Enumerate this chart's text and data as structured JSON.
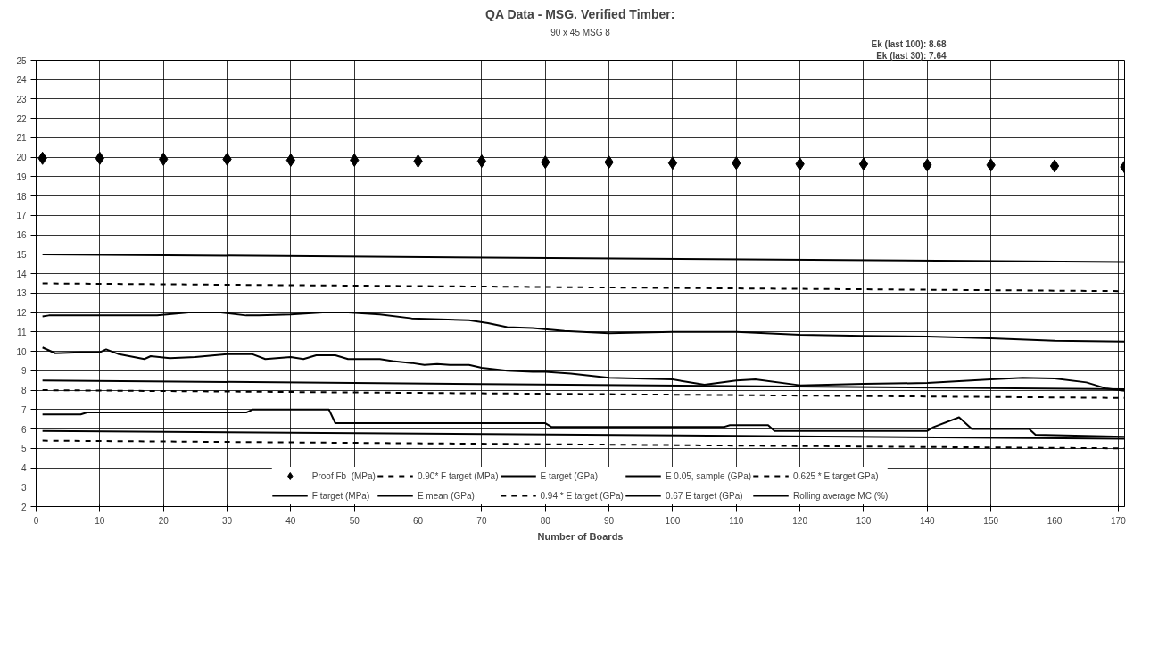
{
  "chart_data": {
    "type": "line",
    "title": "QA Data - MSG. Verified Timber:",
    "xlabel": "Number of Boards",
    "annotations": [
      "90 x 45 MSG 8",
      "Ek (last 100): 8.68",
      "Ek (last 30): 7.64"
    ],
    "xlim": [
      0,
      171
    ],
    "xticks": [
      0,
      10,
      20,
      30,
      40,
      50,
      60,
      70,
      80,
      90,
      100,
      110,
      120,
      130,
      140,
      150,
      160,
      170
    ],
    "ylim": [
      2,
      25
    ],
    "yticks": [
      2,
      3,
      4,
      5,
      6,
      7,
      8,
      9,
      10,
      11,
      12,
      13,
      14,
      15,
      16,
      17,
      18,
      19,
      20,
      21,
      22,
      23,
      24,
      25
    ],
    "grid": true,
    "legend": "bottom",
    "series": [
      {
        "name": "Proof Fb  (MPa)",
        "type": "scatter",
        "marker": "diamond",
        "color": "#000000",
        "x": [
          1,
          10,
          20,
          30,
          40,
          50,
          60,
          70,
          80,
          90,
          100,
          110,
          120,
          130,
          140,
          150,
          160,
          171
        ],
        "values": [
          19.95,
          19.95,
          19.9,
          19.9,
          19.85,
          19.85,
          19.8,
          19.8,
          19.75,
          19.75,
          19.7,
          19.7,
          19.65,
          19.65,
          19.6,
          19.6,
          19.55,
          19.5
        ]
      },
      {
        "name": "F target (MPa)",
        "color": "#000000",
        "line_style": "solid",
        "x": [
          1,
          171
        ],
        "values": [
          15.0,
          14.6
        ]
      },
      {
        "name": "0.90* F target (MPa)",
        "color": "#000000",
        "line_style": "dashed",
        "x": [
          1,
          171
        ],
        "values": [
          13.5,
          13.1
        ]
      },
      {
        "name": "E mean (GPa)",
        "color": "#000000",
        "line_style": "solid",
        "x": [
          1,
          3,
          7,
          10,
          11,
          13,
          17,
          18,
          21,
          25,
          30,
          34,
          36,
          40,
          42,
          44,
          47,
          49,
          54,
          56,
          59,
          61,
          63,
          65,
          68,
          70,
          74,
          78,
          80,
          84,
          90,
          100,
          105,
          110,
          113,
          120,
          130,
          140,
          150,
          155,
          160,
          165,
          168,
          171
        ],
        "values": [
          10.2,
          9.9,
          9.95,
          9.95,
          10.1,
          9.85,
          9.6,
          9.75,
          9.65,
          9.7,
          9.85,
          9.85,
          9.6,
          9.7,
          9.6,
          9.8,
          9.8,
          9.6,
          9.6,
          9.5,
          9.4,
          9.3,
          9.35,
          9.3,
          9.3,
          9.15,
          9.0,
          8.95,
          8.95,
          8.85,
          8.64,
          8.55,
          8.28,
          8.5,
          8.55,
          8.25,
          8.32,
          8.37,
          8.55,
          8.64,
          8.6,
          8.4,
          8.1,
          7.97
        ]
      },
      {
        "name": "E target (GPa)",
        "color": "#000000",
        "line_style": "solid",
        "x": [
          1,
          171
        ],
        "values": [
          8.5,
          8.05
        ]
      },
      {
        "name": "0.94 * E target (GPa)",
        "color": "#000000",
        "line_style": "dashed",
        "x": [
          1,
          171
        ],
        "values": [
          8.0,
          7.6
        ]
      },
      {
        "name": "E 0.05, sample (GPa)",
        "color": "#000000",
        "line_style": "solid",
        "x": [
          1,
          7,
          8,
          33,
          34,
          46,
          47,
          80,
          81,
          108,
          109,
          115,
          116,
          140,
          141,
          145,
          147,
          156,
          157,
          171
        ],
        "values": [
          6.75,
          6.75,
          6.85,
          6.85,
          7.0,
          7.0,
          6.3,
          6.3,
          6.1,
          6.1,
          6.2,
          6.2,
          5.9,
          5.9,
          6.1,
          6.6,
          6.0,
          6.0,
          5.7,
          5.6
        ]
      },
      {
        "name": "0.67 E target (GPa)",
        "color": "#000000",
        "line_style": "solid",
        "x": [
          1,
          171
        ],
        "values": [
          5.9,
          5.5
        ]
      },
      {
        "name": "0.625 * E target GPa)",
        "color": "#000000",
        "line_style": "dashed",
        "x": [
          1,
          171
        ],
        "values": [
          5.4,
          5.0
        ]
      },
      {
        "name": "Rolling average MC (%)",
        "color": "#000000",
        "line_style": "solid",
        "x": [
          1,
          2,
          19,
          24,
          29,
          33,
          35,
          40,
          45,
          49,
          54,
          59,
          68,
          71,
          74,
          78,
          83,
          90,
          100,
          110,
          120,
          130,
          140,
          150,
          160,
          171
        ],
        "values": [
          11.8,
          11.85,
          11.85,
          12.0,
          12.0,
          11.85,
          11.85,
          11.9,
          12.0,
          12.0,
          11.9,
          11.7,
          11.6,
          11.45,
          11.25,
          11.2,
          11.05,
          10.94,
          11.0,
          11.0,
          10.85,
          10.8,
          10.76,
          10.67,
          10.55,
          10.5
        ]
      }
    ]
  }
}
